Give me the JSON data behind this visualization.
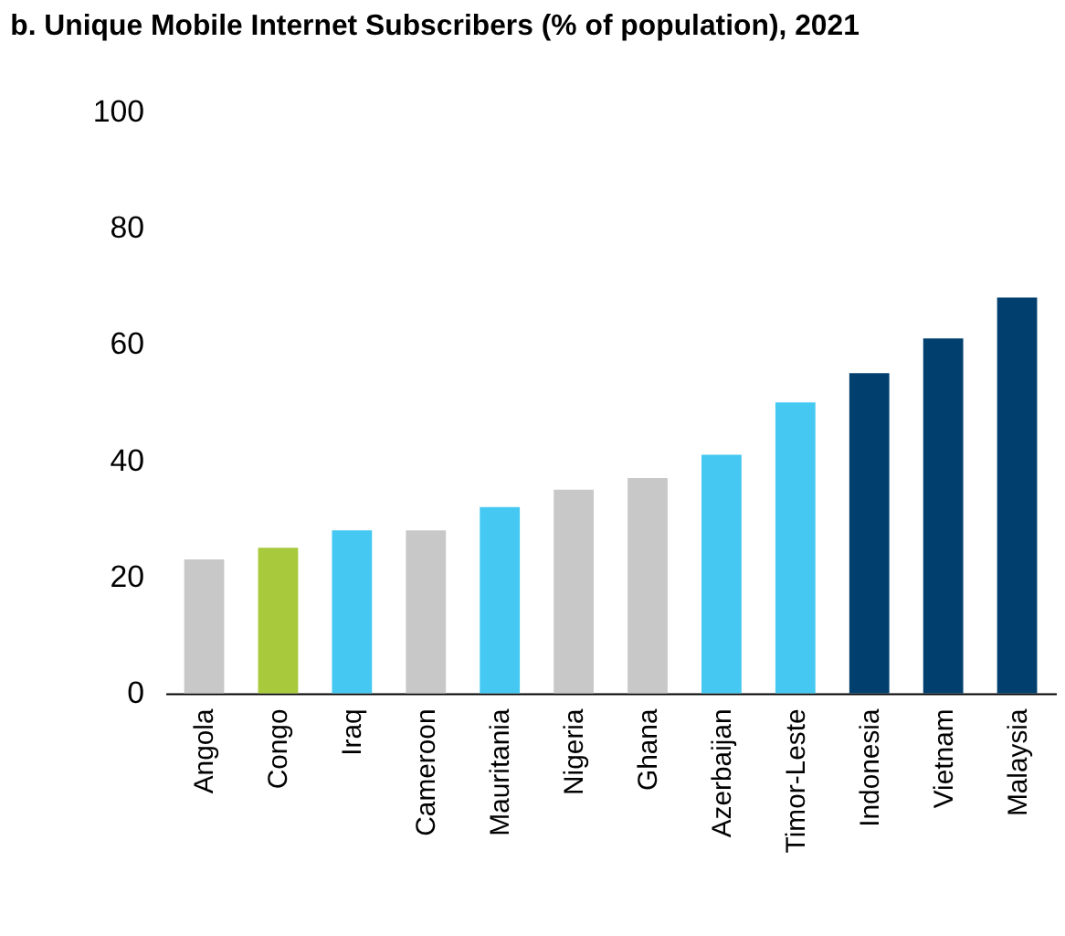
{
  "chart_data": {
    "type": "bar",
    "title": "b. Unique Mobile Internet Subscribers (% of population), 2021",
    "categories": [
      "Angola",
      "Congo",
      "Iraq",
      "Cameroon",
      "Mauritania",
      "Nigeria",
      "Ghana",
      "Azerbaijan",
      "Timor-Leste",
      "Indonesia",
      "Vietnam",
      "Malaysia"
    ],
    "values": [
      23,
      25,
      28,
      28,
      32,
      35,
      37,
      41,
      50,
      55,
      61,
      68
    ],
    "colors": [
      "#c8c8c8",
      "#a8c93c",
      "#45c8f2",
      "#c8c8c8",
      "#45c8f2",
      "#c8c8c8",
      "#c8c8c8",
      "#45c8f2",
      "#45c8f2",
      "#003f6e",
      "#003f6e",
      "#003f6e"
    ],
    "ylim": [
      0,
      100
    ],
    "yticks": [
      0,
      20,
      40,
      60,
      80,
      100
    ],
    "grid": false
  }
}
